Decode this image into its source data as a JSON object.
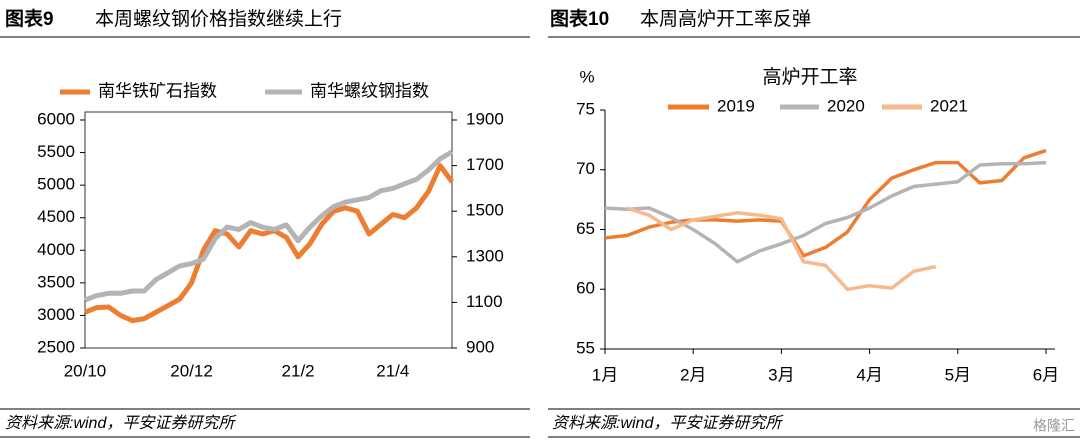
{
  "chart_data": [
    {
      "type": "line",
      "figure_label": "图表9",
      "heading": "本周螺纹钢价格指数继续上行",
      "source": "资料来源:wind，平安证券研究所",
      "categories": [
        "20/10",
        null,
        null,
        null,
        null,
        null,
        null,
        null,
        null,
        "20/12",
        null,
        null,
        null,
        null,
        null,
        null,
        null,
        null,
        "21/2",
        null,
        null,
        null,
        null,
        null,
        null,
        null,
        "21/4",
        null,
        null,
        null,
        null,
        null
      ],
      "series": [
        {
          "name": "南华铁矿石指数",
          "color": "#ed7d31",
          "values": [
            3050,
            3120,
            3130,
            3000,
            2920,
            2950,
            3050,
            3150,
            3250,
            3500,
            4000,
            4300,
            4250,
            4050,
            4300,
            4250,
            4300,
            4200,
            3900,
            4100,
            4400,
            4600,
            4650,
            4600,
            4250,
            4400,
            4550,
            4500,
            4650,
            4900,
            5300,
            5050
          ]
        },
        {
          "name": "南华螺纹钢指数",
          "color": "#b4b4b4",
          "axis": "y2",
          "values": [
            1110,
            1130,
            1140,
            1140,
            1150,
            1150,
            1200,
            1230,
            1260,
            1270,
            1290,
            1380,
            1430,
            1420,
            1450,
            1430,
            1420,
            1440,
            1370,
            1430,
            1480,
            1520,
            1540,
            1550,
            1560,
            1590,
            1600,
            1620,
            1640,
            1680,
            1730,
            1760
          ]
        }
      ],
      "ylim": [
        2500,
        6000
      ],
      "yticks": [
        2500,
        3000,
        3500,
        4000,
        4500,
        5000,
        5500,
        6000
      ],
      "y2lim": [
        900,
        1900
      ],
      "y2ticks": [
        900,
        1100,
        1300,
        1500,
        1700,
        1900
      ]
    },
    {
      "type": "line",
      "figure_label": "图表10",
      "heading": "本周高炉开工率反弹",
      "title": "高炉开工率",
      "ylabel": "%",
      "source": "资料来源:wind，平安证券研究所",
      "watermark": "格隆汇",
      "x": [
        1,
        1.25,
        1.5,
        1.75,
        2,
        2.25,
        2.5,
        2.75,
        3,
        3.25,
        3.5,
        3.75,
        4,
        4.25,
        4.5,
        4.75,
        5,
        5.25,
        5.5,
        5.75,
        6
      ],
      "series": [
        {
          "name": "2019",
          "color": "#ed7d31",
          "values": [
            64.3,
            64.5,
            65.2,
            65.6,
            65.8,
            65.8,
            65.7,
            65.8,
            65.7,
            62.8,
            63.5,
            64.8,
            67.5,
            69.3,
            70.0,
            70.6,
            70.6,
            68.9,
            69.1,
            71.0,
            71.6
          ]
        },
        {
          "name": "2020",
          "color": "#b4b4b4",
          "values": [
            66.8,
            66.7,
            66.8,
            66.0,
            65.0,
            63.8,
            62.3,
            63.2,
            63.8,
            64.5,
            65.5,
            66.0,
            66.8,
            67.8,
            68.6,
            68.8,
            69.0,
            70.4,
            70.5,
            70.5,
            70.6
          ]
        },
        {
          "name": "2021",
          "color": "#f6b98e",
          "values": [
            null,
            66.8,
            66.2,
            65.0,
            65.8,
            66.1,
            66.4,
            66.2,
            65.9,
            62.3,
            62.0,
            60.0,
            60.3,
            60.1,
            61.5,
            61.9,
            null,
            null,
            null,
            null,
            null
          ]
        }
      ],
      "xlim": [
        1,
        6
      ],
      "xticks": [
        {
          "value": 1,
          "label": "1月"
        },
        {
          "value": 2,
          "label": "2月"
        },
        {
          "value": 3,
          "label": "3月"
        },
        {
          "value": 4,
          "label": "4月"
        },
        {
          "value": 5,
          "label": "5月"
        },
        {
          "value": 6,
          "label": "6月"
        }
      ],
      "ylim": [
        55,
        75
      ],
      "yticks": [
        55,
        60,
        65,
        70,
        75
      ]
    }
  ]
}
